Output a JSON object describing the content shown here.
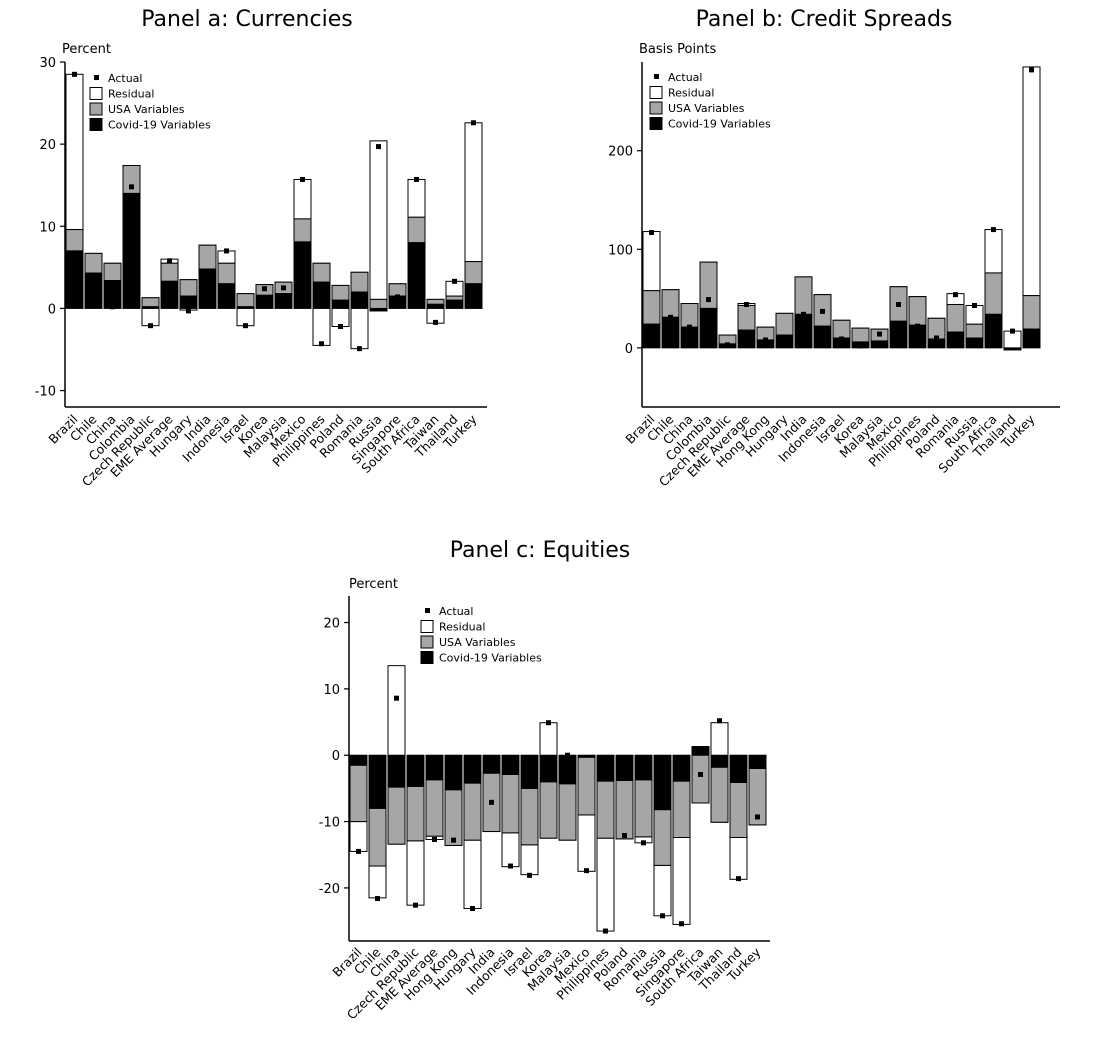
{
  "chart_data": [
    {
      "type": "bar",
      "stacked": true,
      "title": "Panel a: Currencies",
      "ylabel": "Percent",
      "ylim": [
        -12,
        30
      ],
      "yticks": [
        -10,
        0,
        10,
        20,
        30
      ],
      "legend": [
        "Actual",
        "Residual",
        "USA Variables",
        "Covid-19 Variables"
      ],
      "legend_position": "top-left",
      "categories": [
        "Brazil",
        "Chile",
        "China",
        "Colombia",
        "Czech Republic",
        "EME Average",
        "Hungary",
        "India",
        "Indonesia",
        "Israel",
        "Korea",
        "Malaysia",
        "Mexico",
        "Philippines",
        "Poland",
        "Romania",
        "Russia",
        "Singapore",
        "South Africa",
        "Taiwan",
        "Thailand",
        "Turkey"
      ],
      "series": [
        {
          "name": "Covid-19 Variables",
          "values": [
            7,
            4.3,
            3.4,
            14,
            0.2,
            3.3,
            1.5,
            4.8,
            3,
            0.2,
            1.6,
            1.8,
            8.1,
            3.2,
            1,
            2,
            -0.3,
            1.5,
            8,
            0.5,
            1,
            3
          ]
        },
        {
          "name": "USA Variables",
          "values": [
            2.6,
            2.4,
            2.1,
            3.4,
            1.1,
            2.2,
            2,
            2.9,
            2.5,
            1.6,
            1.3,
            1.4,
            2.8,
            2.3,
            1.8,
            2.4,
            1.4,
            1.5,
            3.1,
            0.6,
            0.5,
            2.7
          ]
        },
        {
          "name": "Residual",
          "values": [
            18.9,
            -5.4,
            -5.3,
            -2.6,
            -3.4,
            0.5,
            -3.7,
            -3.5,
            1.5,
            -3.9,
            -0.6,
            -0.6,
            4.8,
            -10,
            -5,
            -9.3,
            19.3,
            -1.6,
            4.6,
            -2.9,
            1.8,
            16.9
          ]
        }
      ],
      "actual": [
        28.5,
        1.3,
        0.2,
        14.8,
        -2.1,
        5.8,
        -0.3,
        4.3,
        7,
        -2.1,
        2.4,
        2.5,
        15.7,
        -4.3,
        -2.2,
        -4.9,
        19.7,
        1.4,
        15.7,
        -1.7,
        3.3,
        22.6
      ]
    },
    {
      "type": "bar",
      "stacked": true,
      "title": "Panel b: Credit Spreads",
      "ylabel": "Basis Points",
      "ylim": [
        -60,
        290
      ],
      "yticks": [
        0,
        100,
        200
      ],
      "legend": [
        "Actual",
        "Residual",
        "USA Variables",
        "Covid-19 Variables"
      ],
      "legend_position": "top-left",
      "categories": [
        "Brazil",
        "Chile",
        "China",
        "Colombia",
        "Czech Republic",
        "EME Average",
        "Hong Kong",
        "Hungary",
        "India",
        "Indonesia",
        "Israel",
        "Korea",
        "Malaysia",
        "Mexico",
        "Philippines",
        "Poland",
        "Romania",
        "Russia",
        "South Africa",
        "Thailand",
        "Turkey"
      ],
      "series": [
        {
          "name": "Covid-19 Variables",
          "values": [
            24,
            31,
            21,
            40,
            4,
            18,
            8,
            13,
            34,
            22,
            10,
            6,
            7,
            27,
            23,
            9,
            16,
            10,
            34,
            -2,
            19
          ]
        },
        {
          "name": "USA Variables",
          "values": [
            34,
            28,
            24,
            47,
            9,
            25,
            13,
            22,
            38,
            32,
            18,
            14,
            12,
            35,
            29,
            21,
            28,
            14,
            42,
            0,
            34
          ]
        },
        {
          "name": "Residual",
          "values": [
            60,
            -42,
            -40,
            -37,
            -11,
            2,
            -14,
            -31,
            -42,
            -18,
            -19,
            -19,
            -7,
            -19,
            -38,
            -21,
            11,
            19,
            44,
            19,
            232
          ]
        }
      ],
      "actual": [
        117,
        31,
        21,
        49,
        3,
        44,
        8,
        10,
        34,
        37,
        9,
        2,
        14,
        44,
        22,
        10,
        54,
        43,
        120,
        17,
        282
      ]
    },
    {
      "type": "bar",
      "stacked": true,
      "title": "Panel c: Equities",
      "ylabel": "Percent",
      "ylim": [
        -28,
        24
      ],
      "yticks": [
        -20,
        -10,
        0,
        10,
        20
      ],
      "legend": [
        "Actual",
        "Residual",
        "USA Variables",
        "Covid-19 Variables"
      ],
      "legend_position": "top-left",
      "categories": [
        "Brazil",
        "Chile",
        "China",
        "Czech Republic",
        "EME Average",
        "Hong Kong",
        "Hungary",
        "India",
        "Indonesia",
        "Israel",
        "Korea",
        "Malaysia",
        "Mexico",
        "Philippines",
        "Poland",
        "Romania",
        "Russia",
        "Singapore",
        "South Africa",
        "Taiwan",
        "Thailand",
        "Turkey"
      ],
      "series": [
        {
          "name": "Covid-19 Variables",
          "values": [
            -1.5,
            -8,
            -4.8,
            -4.7,
            -3.7,
            -5.2,
            -4.2,
            -2.7,
            -2.9,
            -5,
            -4,
            -4.3,
            -0.3,
            -3.9,
            -3.8,
            -3.7,
            -8.2,
            -3.9,
            1.3,
            -1.8,
            -4.1,
            -2
          ]
        },
        {
          "name": "USA Variables",
          "values": [
            -8.5,
            -8.7,
            -8.6,
            -8.2,
            -8.5,
            -8.4,
            -8.6,
            -8.8,
            -8.8,
            -8.5,
            -8.5,
            -8.5,
            -8.7,
            -8.6,
            -8.8,
            -8.6,
            -8.4,
            -8.5,
            -8.5,
            -8.3,
            -8.3,
            -8.5
          ]
        },
        {
          "name": "Residual",
          "values": [
            -4.5,
            -4.8,
            26.9,
            -9.7,
            -0.5,
            0.8,
            -10.3,
            4.5,
            -5.1,
            -4.5,
            17.4,
            10.3,
            -8.5,
            -14,
            0.3,
            -0.9,
            -7.6,
            -13.1,
            5.9,
            15,
            -6.3,
            1.3
          ]
        }
      ],
      "actual": [
        -14.5,
        -21.6,
        8.6,
        -22.6,
        -12.7,
        -12.8,
        -23.1,
        -7.1,
        -16.7,
        -18.1,
        4.9,
        0,
        -17.4,
        -26.5,
        -12.1,
        -13.2,
        -24.2,
        -25.4,
        -2.9,
        5.2,
        -18.6,
        -9.3
      ]
    }
  ]
}
